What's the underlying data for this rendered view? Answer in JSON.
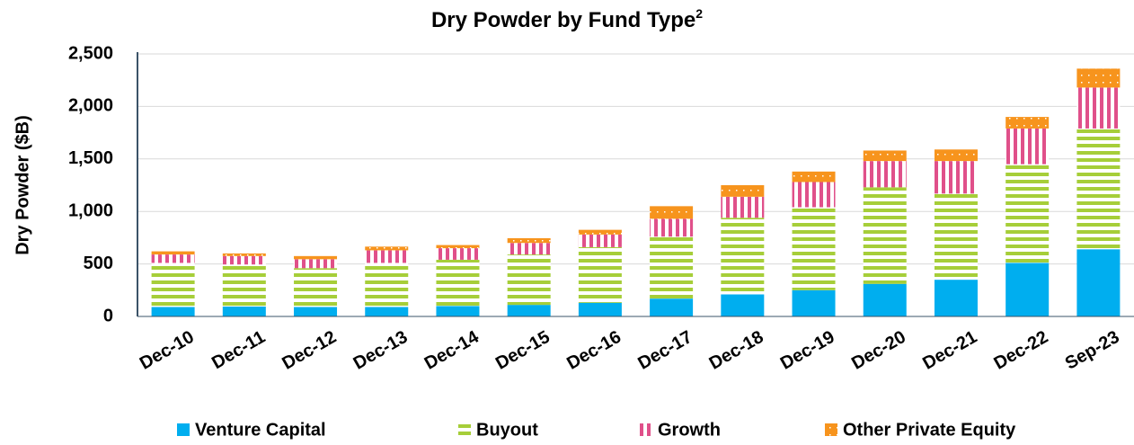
{
  "chart_data": {
    "type": "stacked_bar",
    "title": "Dry Powder by Fund Type",
    "title_superscript": "2",
    "y_label": "Dry Powder ($B)",
    "categories": [
      "Dec-10",
      "Dec-11",
      "Dec-12",
      "Dec-13",
      "Dec-14",
      "Dec-15",
      "Dec-16",
      "Dec-17",
      "Dec-18",
      "Dec-19",
      "Dec-20",
      "Dec-21",
      "Dec-22",
      "Sep-23"
    ],
    "series": [
      {
        "name": "Venture Capital",
        "color": "#00aeef",
        "values": [
          90,
          95,
          90,
          90,
          100,
          110,
          130,
          170,
          210,
          250,
          310,
          350,
          510,
          640
        ]
      },
      {
        "name": "Buyout",
        "color": "#a6ce39",
        "values": [
          420,
          400,
          370,
          420,
          440,
          480,
          530,
          590,
          730,
          790,
          920,
          820,
          940,
          1150
        ]
      },
      {
        "name": "Growth",
        "color": "#e0508a",
        "values": [
          80,
          80,
          85,
          120,
          110,
          110,
          120,
          170,
          200,
          240,
          250,
          310,
          340,
          390
        ]
      },
      {
        "name": "Other Private Equity",
        "color": "#f7941d",
        "values": [
          30,
          25,
          30,
          35,
          30,
          45,
          45,
          120,
          110,
          100,
          100,
          110,
          110,
          180
        ]
      }
    ],
    "ylim": [
      0,
      2500
    ],
    "yticks": [
      0,
      {
        "value": 500,
        "label": "500"
      },
      {
        "value": 1000,
        "label": "1,000"
      },
      {
        "value": 1500,
        "label": "1,500"
      },
      {
        "value": 2000,
        "label": "2,000"
      },
      {
        "value": 2500,
        "label": "2,500"
      }
    ],
    "grid": true,
    "legend": "bottom"
  }
}
